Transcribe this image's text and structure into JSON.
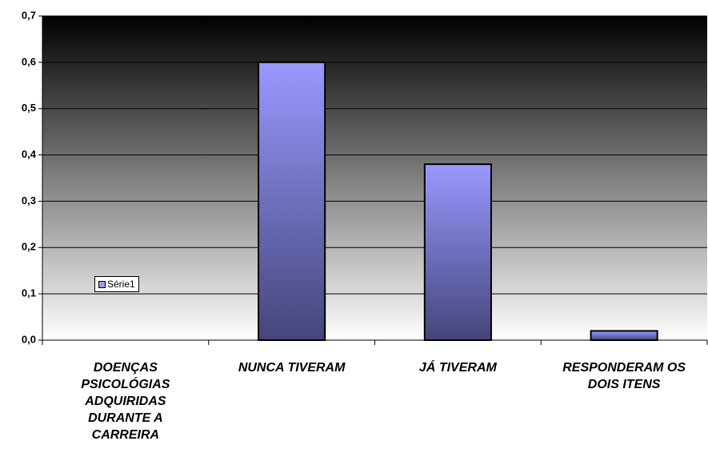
{
  "chart_data": {
    "type": "bar",
    "categories": [
      "DOENÇAS PSICOLÓGIAS ADQUIRIDAS DURANTE A CARREIRA",
      "NUNCA TIVERAM",
      "JÁ TIVERAM",
      "RESPONDERAM OS DOIS ITENS"
    ],
    "series": [
      {
        "name": "Série1",
        "color": "#9999ff",
        "values": [
          0,
          0.6,
          0.38,
          0.02
        ]
      }
    ],
    "ylim": [
      0,
      0.7
    ],
    "yticks": [
      {
        "value": 0,
        "label": "0,0"
      },
      {
        "value": 0.1,
        "label": "0,1"
      },
      {
        "value": 0.2,
        "label": "0,2"
      },
      {
        "value": 0.3,
        "label": "0,3"
      },
      {
        "value": 0.4,
        "label": "0,4"
      },
      {
        "value": 0.5,
        "label": "0,5"
      },
      {
        "value": 0.6,
        "label": "0,6"
      },
      {
        "value": 0.7,
        "label": "0,7"
      }
    ],
    "grid": true,
    "legend": "left"
  }
}
